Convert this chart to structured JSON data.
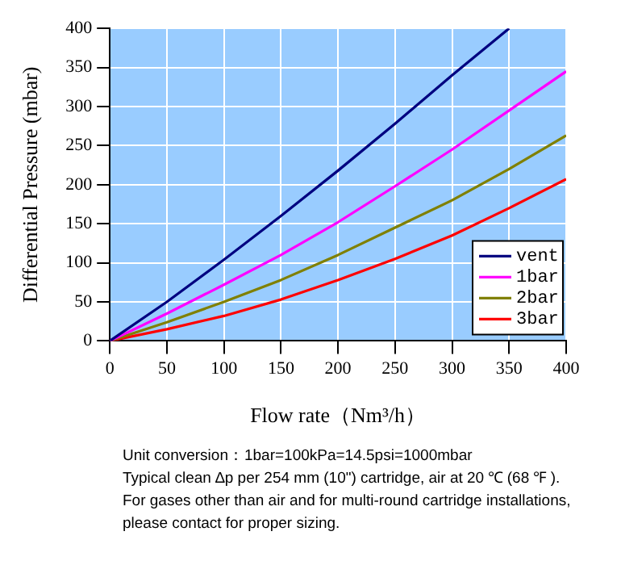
{
  "chart_data": {
    "type": "line",
    "xlabel": "Flow rate（Nm³/h）",
    "ylabel": "Differential Pressure (mbar)",
    "xlim": [
      0,
      400
    ],
    "ylim": [
      0,
      400
    ],
    "xticks": [
      0,
      50,
      100,
      150,
      200,
      250,
      300,
      350,
      400
    ],
    "yticks": [
      0,
      50,
      100,
      150,
      200,
      250,
      300,
      350,
      400
    ],
    "grid": true,
    "legend": "bottom right",
    "marker": "none",
    "line_style": "solid",
    "series": [
      {
        "name": "vent",
        "color": "#000080",
        "x": [
          0,
          50,
          100,
          150,
          200,
          250,
          300,
          350
        ],
        "values": [
          0,
          50,
          104,
          160,
          218,
          278,
          340,
          400
        ]
      },
      {
        "name": "1bar",
        "color": "#ff00ff",
        "x": [
          0,
          50,
          100,
          150,
          200,
          250,
          300,
          350,
          400
        ],
        "values": [
          0,
          35,
          72,
          110,
          152,
          198,
          245,
          295,
          345
        ]
      },
      {
        "name": "2bar",
        "color": "#808000",
        "x": [
          0,
          50,
          100,
          150,
          200,
          250,
          300,
          350,
          400
        ],
        "values": [
          0,
          24,
          50,
          78,
          110,
          145,
          180,
          220,
          263
        ]
      },
      {
        "name": "3bar",
        "color": "#ff0000",
        "x": [
          0,
          50,
          100,
          150,
          200,
          250,
          300,
          350,
          400
        ],
        "values": [
          0,
          15,
          32,
          53,
          78,
          105,
          135,
          170,
          207
        ]
      }
    ],
    "annotations": [
      "Unit conversion：1bar=100kPa=14.5psi=1000mbar",
      "Typical clean ∆p per 254 mm (10\") cartridge, air at 20 ℃ (68 ℉ ).",
      "For gases other than air and for multi-round cartridge installations,",
      "please contact for proper sizing."
    ]
  }
}
